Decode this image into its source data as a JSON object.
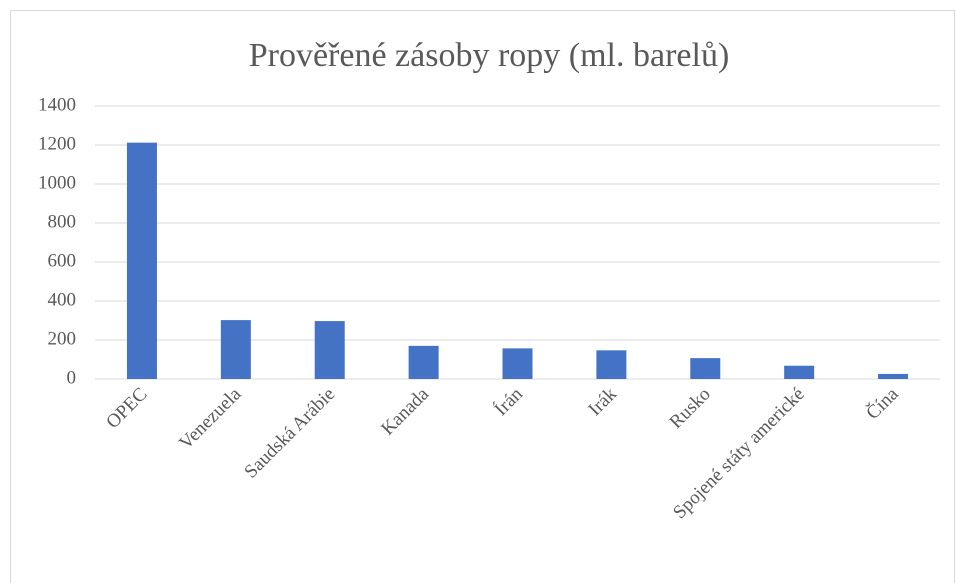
{
  "chart_data": {
    "type": "bar",
    "title": "Prověřené zásoby ropy (ml. barelů)",
    "categories": [
      "OPEC",
      "Venezuela",
      "Saudská Arábie",
      "Kanada",
      "Írán",
      "Irák",
      "Rusko",
      "Spojené státy americké",
      "Čína"
    ],
    "values": [
      1212,
      302,
      297,
      170,
      157,
      147,
      107,
      68,
      26
    ],
    "color": "#4472c4",
    "ylim": [
      0,
      1400
    ],
    "yticks": [
      0,
      200,
      400,
      600,
      800,
      1000,
      1200,
      1400
    ],
    "grid": true
  }
}
